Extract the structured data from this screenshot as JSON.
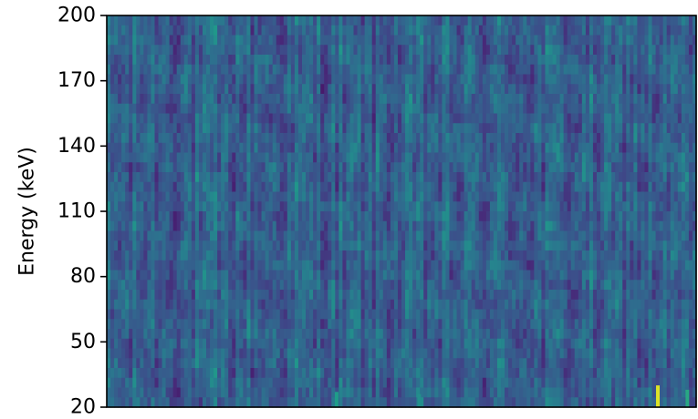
{
  "chart_data": {
    "type": "heatmap",
    "title": "",
    "xlabel": "",
    "ylabel": "Energy (keV)",
    "ylim": [
      20,
      200
    ],
    "yticks": [
      20,
      50,
      80,
      110,
      140,
      170,
      200
    ],
    "yticklabels": [
      "20",
      "50",
      "80",
      "110",
      "140",
      "170",
      "200"
    ],
    "xticks": [],
    "colormap": "viridis",
    "colors": {
      "low": "#440154",
      "mid_low": "#3b528b",
      "mid": "#21918c",
      "mid_high": "#5ec962",
      "high": "#fde725"
    },
    "columns": 160,
    "rows": 40,
    "background_level": 0.3,
    "hotspots": [
      {
        "column_fraction": 0.935,
        "energy_range": [
          20,
          30
        ],
        "level": 0.95
      },
      {
        "column_fraction": 0.39,
        "energy_range": [
          20,
          27
        ],
        "level": 0.55
      },
      {
        "column_fraction": 0.53,
        "energy_range": [
          20,
          26
        ],
        "level": 0.5
      },
      {
        "column_fraction": 0.985,
        "energy_range": [
          20,
          28
        ],
        "level": 0.6
      }
    ],
    "grid": false,
    "legend": "none"
  }
}
